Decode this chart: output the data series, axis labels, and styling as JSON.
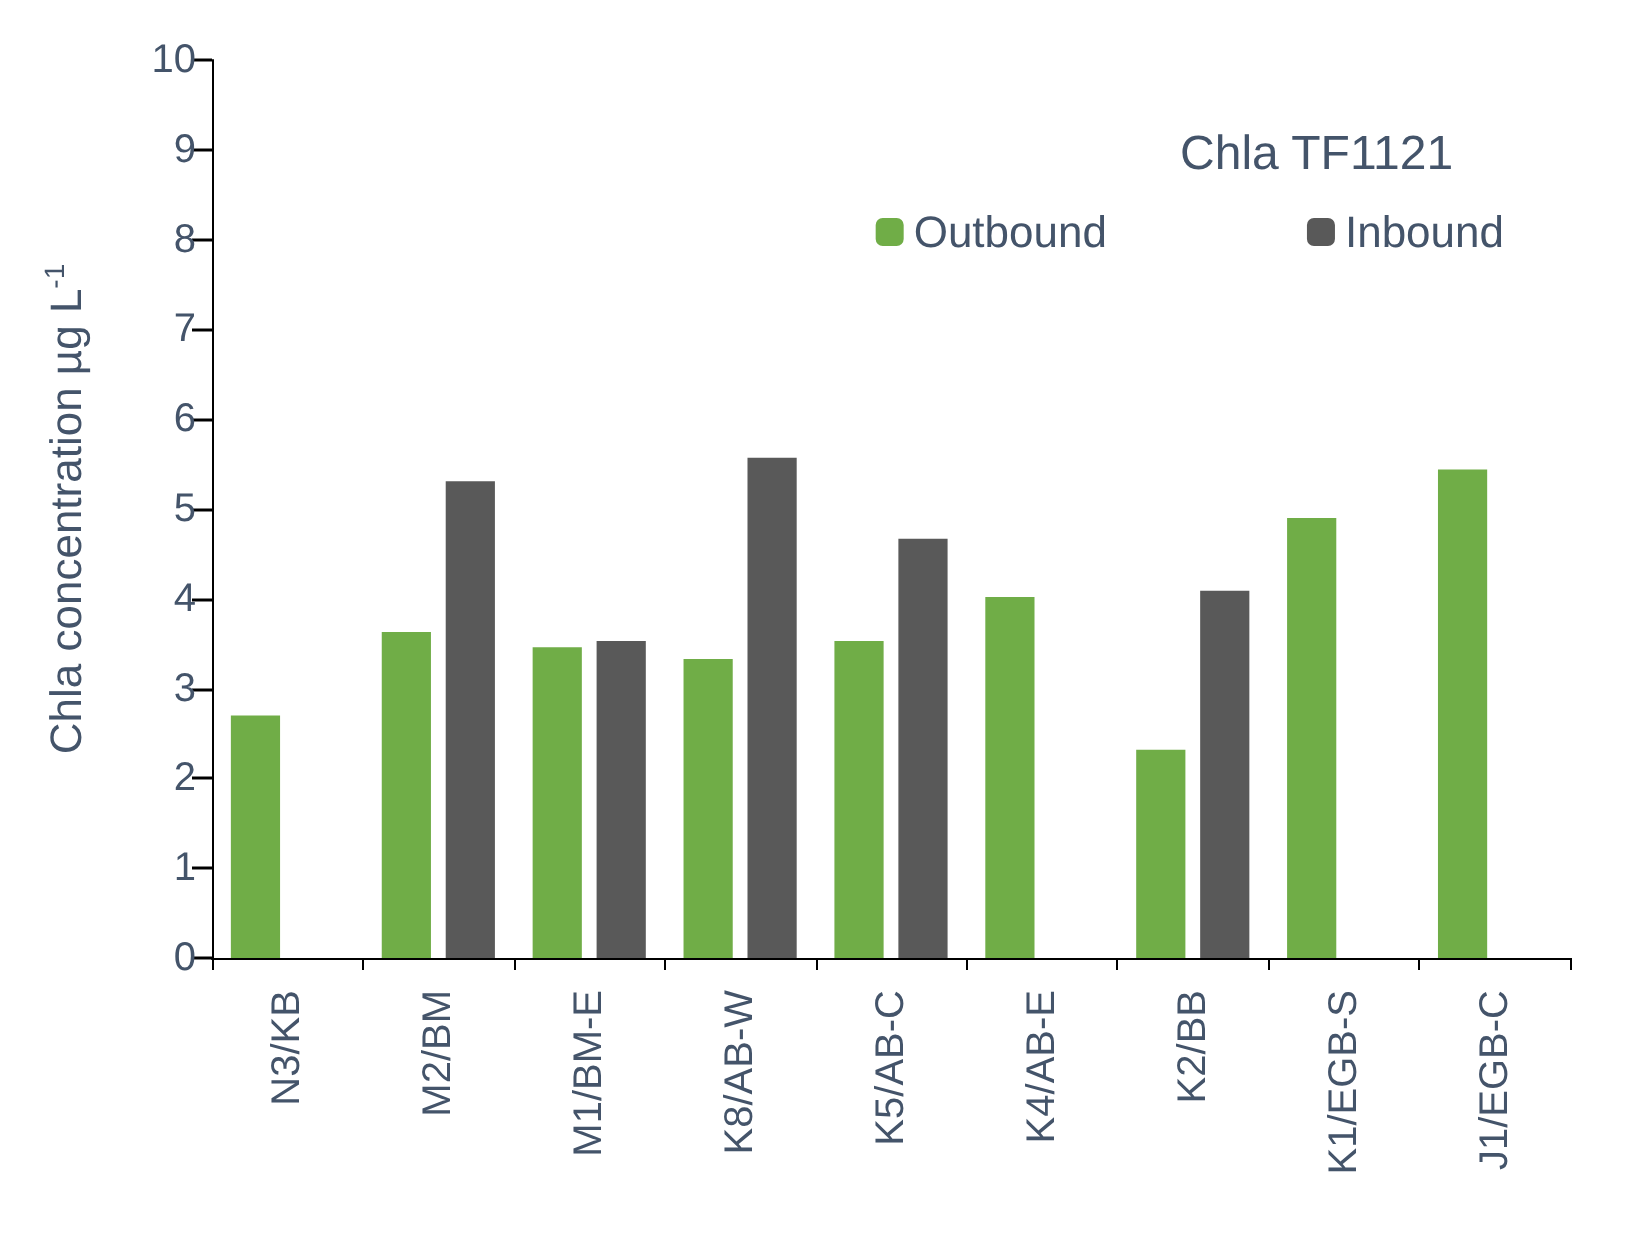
{
  "chart_data": {
    "type": "bar",
    "title": "Chla TF1121",
    "ylabel": "Chla concentration µg L$^{-1}$",
    "categories": [
      "N3/KB",
      "M2/BM",
      "M1/BM-E",
      "K8/AB-W",
      "K5/AB-C",
      "K4/AB-E",
      "K2/BB",
      "K1/EGB-S",
      "J1/EGB-C"
    ],
    "series": [
      {
        "name": "Outbound",
        "color": "#70ad47",
        "values": [
          2.7,
          3.63,
          3.46,
          3.33,
          3.53,
          4.02,
          2.32,
          4.9,
          5.44
        ]
      },
      {
        "name": "Inbound",
        "color": "#595959",
        "values": [
          null,
          5.31,
          3.53,
          5.57,
          4.67,
          null,
          4.09,
          null,
          null
        ]
      }
    ],
    "ylim": [
      0,
      10
    ],
    "yticks": [
      0,
      1,
      2,
      3,
      4,
      5,
      6,
      7,
      8,
      9,
      10
    ],
    "grid": false,
    "legend": "top right"
  }
}
